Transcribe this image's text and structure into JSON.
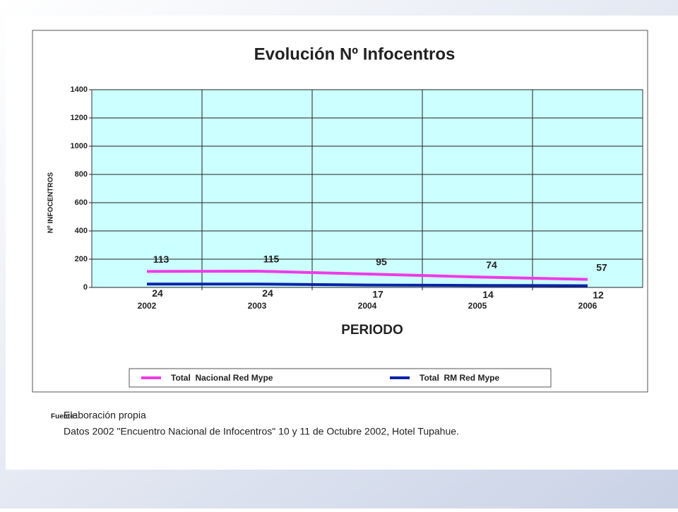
{
  "chart_data": {
    "type": "line",
    "title": "Evolución Nº Infocentros",
    "x_label": "PERIODO",
    "y_label": "Nº INFOCENTROS",
    "categories": [
      "2002",
      "2003",
      "2004",
      "2005",
      "2006"
    ],
    "series": [
      {
        "name": "Total  Nacional Red Mype",
        "color": "#ee3be6",
        "values": [
          113,
          115,
          95,
          74,
          57
        ]
      },
      {
        "name": "Total  RM Red Mype",
        "color": "#0a22a8",
        "values": [
          24,
          24,
          17,
          14,
          12
        ]
      }
    ],
    "ylim": [
      0,
      1400
    ],
    "yticks": [
      0,
      200,
      400,
      600,
      800,
      1000,
      1200,
      1400
    ],
    "grid": true,
    "legend": "bottom"
  },
  "footer": {
    "label": "Fuente:",
    "lines": [
      "Elaboración propia",
      "Datos 2002 \"Encuentro Nacional de Infocentros\" 10 y 11 de Octubre 2002, Hotel Tupahue."
    ]
  }
}
